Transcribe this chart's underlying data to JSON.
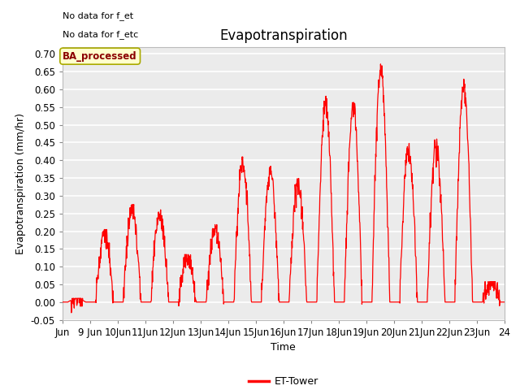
{
  "title": "Evapotranspiration",
  "ylabel": "Evapotranspiration (mm/hr)",
  "xlabel": "Time",
  "text_no_data": [
    "No data for f_et",
    "No data for f_etc"
  ],
  "legend_label": "ET-Tower",
  "legend_box_label": "BA_processed",
  "ylim": [
    -0.05,
    0.72
  ],
  "yticks": [
    -0.05,
    0.0,
    0.05,
    0.1,
    0.15,
    0.2,
    0.25,
    0.3,
    0.35,
    0.4,
    0.45,
    0.5,
    0.55,
    0.6,
    0.65,
    0.7
  ],
  "xtick_labels": [
    "Jun",
    "9 Jun",
    "10Jun",
    "11Jun",
    "12Jun",
    "13Jun",
    "14Jun",
    "15Jun",
    "16Jun",
    "17Jun",
    "18Jun",
    "19Jun",
    "20Jun",
    "21Jun",
    "22Jun",
    "23Jun",
    "24"
  ],
  "line_color": "#ff0000",
  "bg_color": "#ffffff",
  "plot_bg_color": "#ebebeb",
  "title_fontsize": 12,
  "axis_label_fontsize": 9,
  "tick_fontsize": 8.5
}
